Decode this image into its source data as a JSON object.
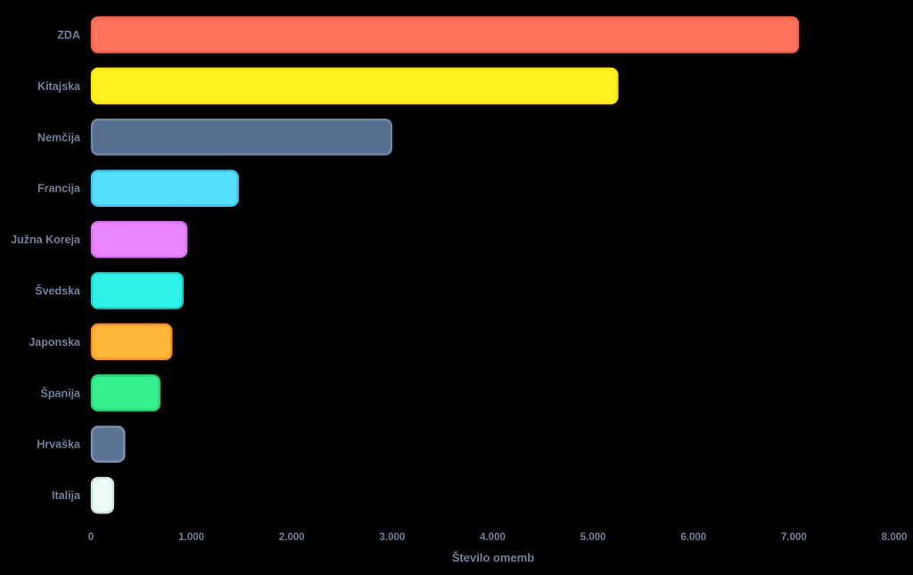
{
  "chart_data": {
    "type": "bar",
    "orientation": "horizontal",
    "categories": [
      "ZDA",
      "Kitajska",
      "Nemčija",
      "Francija",
      "Južna Koreja",
      "Švedska",
      "Japonska",
      "Španija",
      "Hrvaška",
      "Italija"
    ],
    "values": [
      7050,
      5250,
      3000,
      1470,
      960,
      920,
      810,
      690,
      340,
      230
    ],
    "colors": [
      "#ff735c",
      "#fff220",
      "#556e8e",
      "#55e0ff",
      "#ea85ff",
      "#2ef2e8",
      "#ffb73a",
      "#36f08e",
      "#5c7494",
      "#eefaf8"
    ],
    "border_colors": [
      "#ff5e47",
      "#ffe100",
      "#6d86a6",
      "#38c6ff",
      "#d870f0",
      "#19d9cf",
      "#ff8c1a",
      "#24d878",
      "#7990ae",
      "#c8e2dc"
    ],
    "xlabel": "Število omemb",
    "xlim": [
      0,
      8000
    ],
    "xticks": [
      0,
      1000,
      2000,
      3000,
      4000,
      5000,
      6000,
      7000,
      8000
    ],
    "xtick_labels": [
      "0",
      "1.000",
      "2.000",
      "3.000",
      "4.000",
      "5.000",
      "6.000",
      "7.000",
      "8.000"
    ],
    "grid": false,
    "legend": "none",
    "background": "#000000",
    "text_color": "#6f819c"
  }
}
